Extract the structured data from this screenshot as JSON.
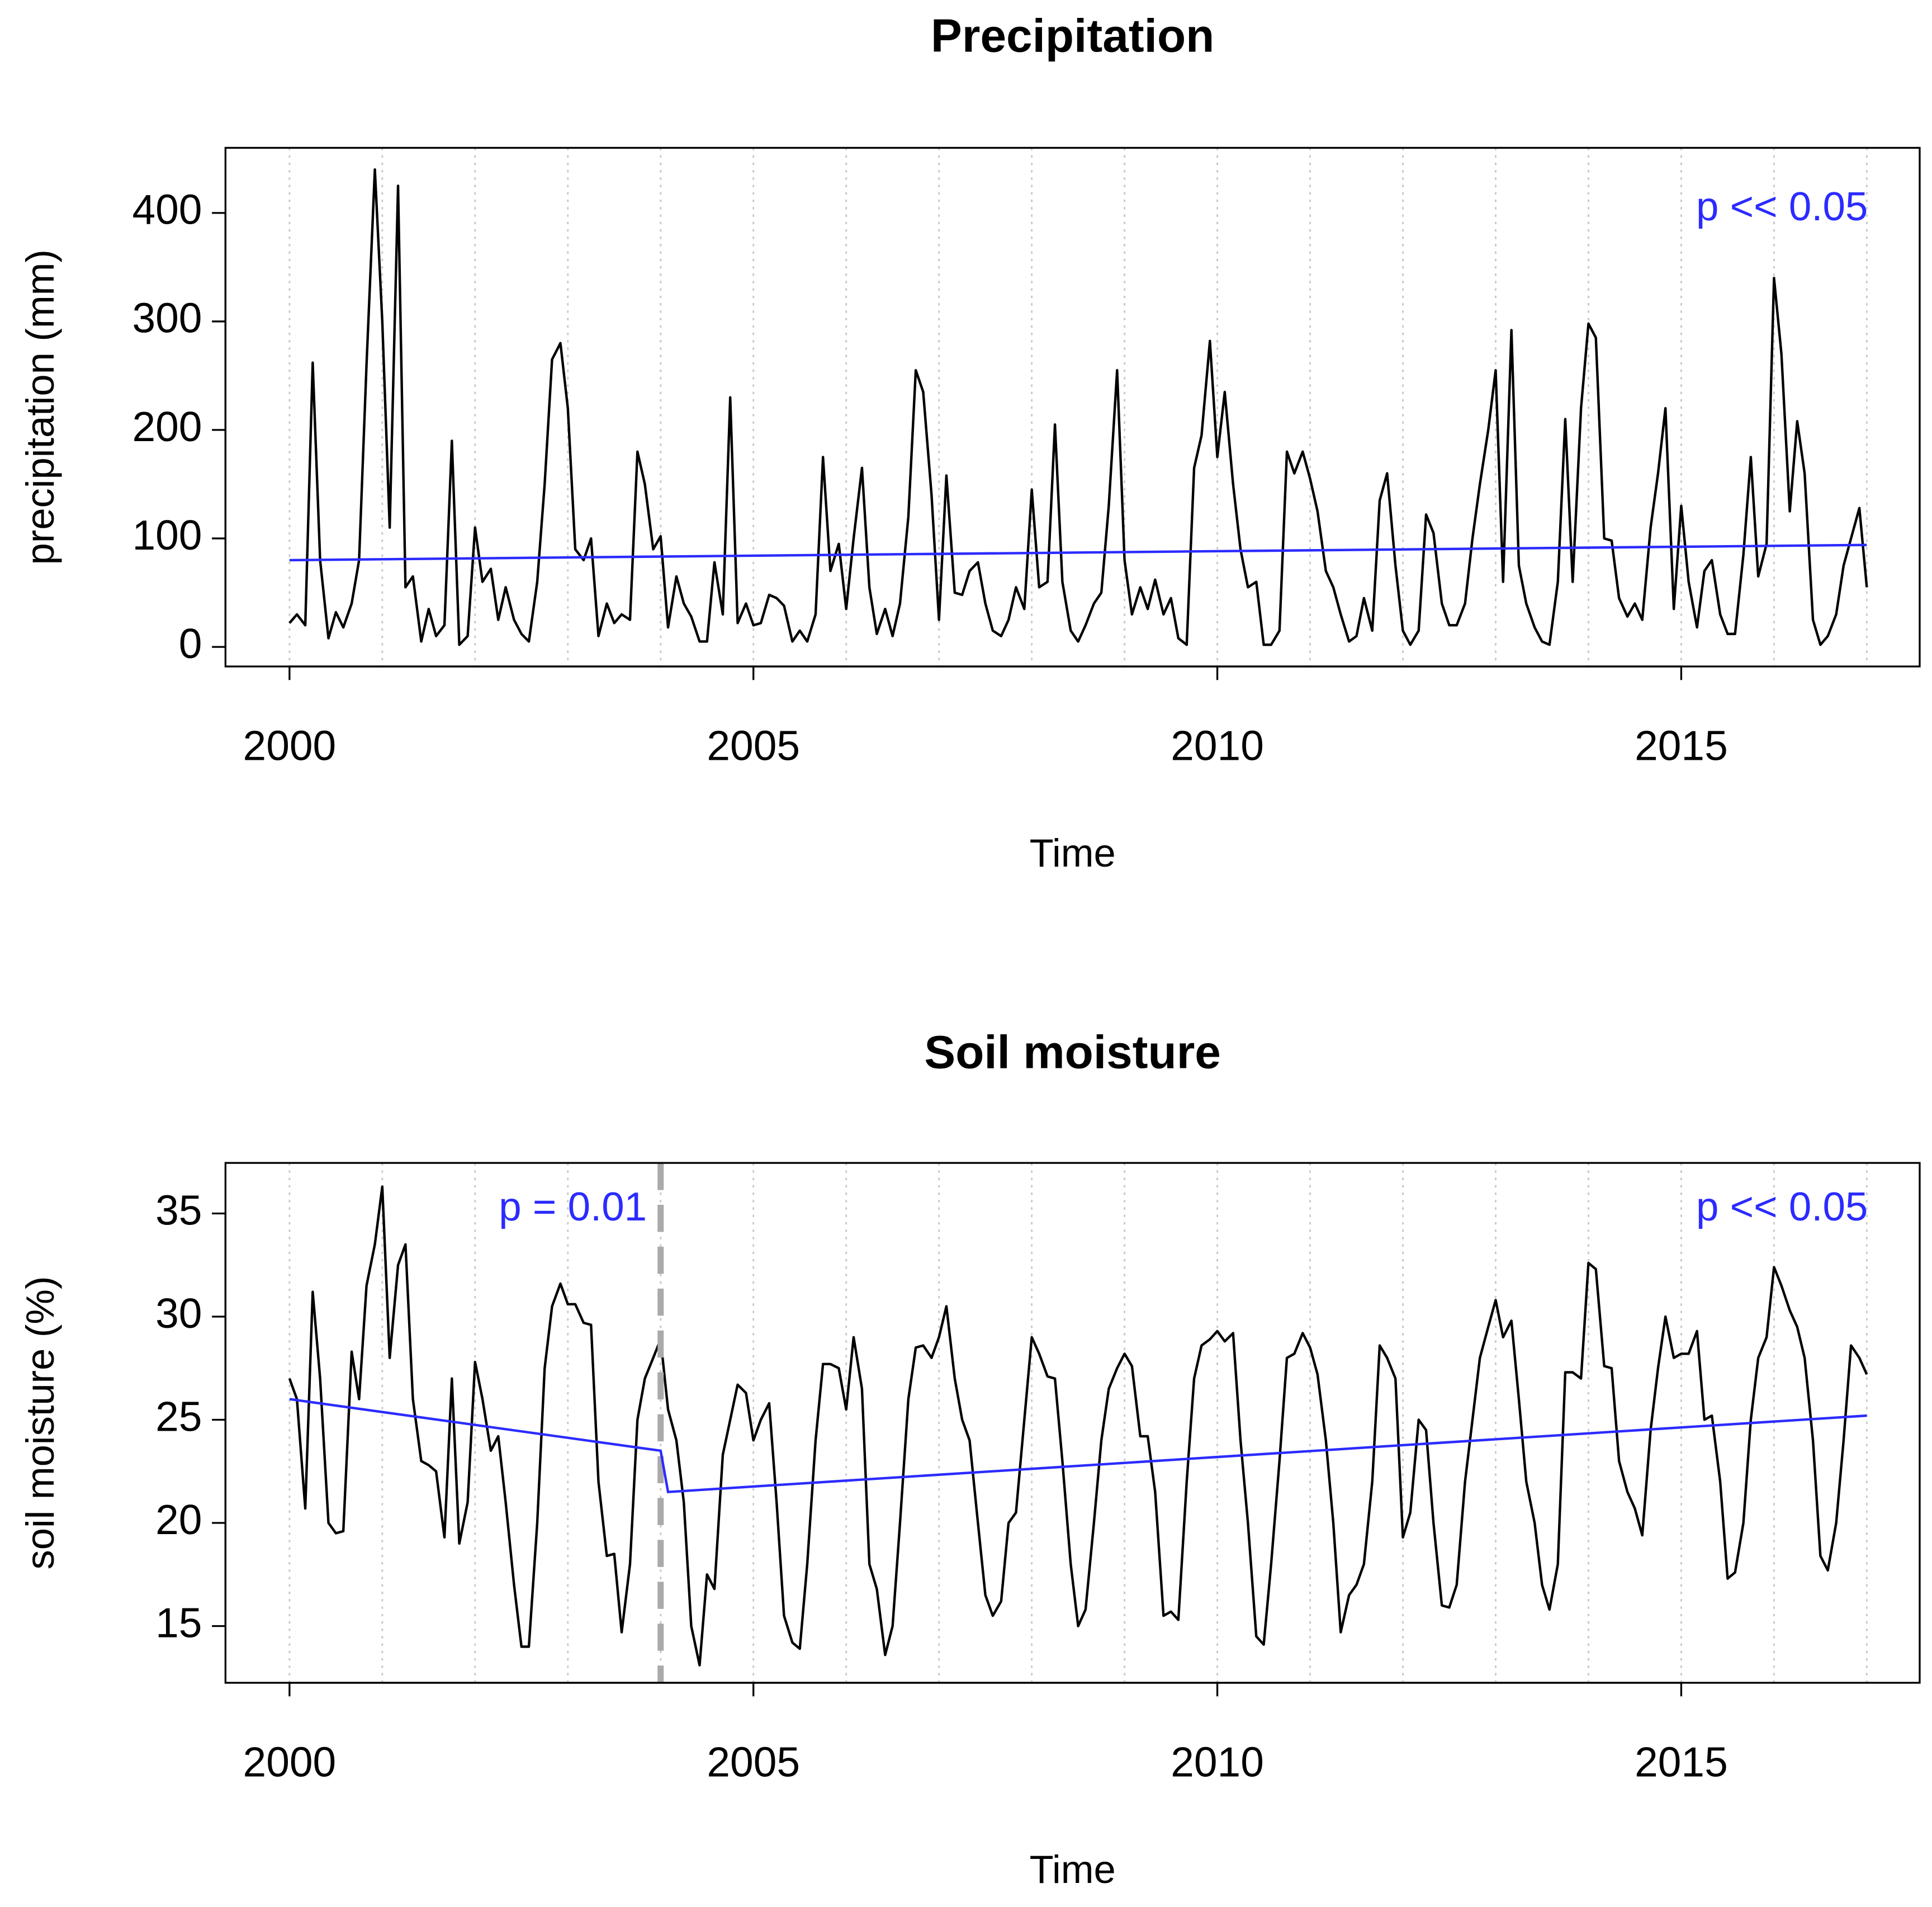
{
  "chart_data": [
    {
      "type": "line",
      "title": "Precipitation",
      "xlabel": "Time",
      "ylabel": "precipitation (mm)",
      "xlim": [
        1999.31,
        2017.57
      ],
      "ylim": [
        -18,
        460
      ],
      "xticks": [
        2000,
        2005,
        2010,
        2015
      ],
      "yticks": [
        0,
        100,
        200,
        300,
        400
      ],
      "xgrid": [
        2000,
        2001,
        2002,
        2003,
        2004,
        2005,
        2006,
        2007,
        2008,
        2009,
        2010,
        2011,
        2012,
        2013,
        2014,
        2015,
        2016,
        2017
      ],
      "grid": true,
      "x": [
        2000,
        2000.08,
        2000.17,
        2000.25,
        2000.33,
        2000.42,
        2000.5,
        2000.58,
        2000.67,
        2000.75,
        2000.83,
        2000.92,
        2001,
        2001.08,
        2001.17,
        2001.25,
        2001.33,
        2001.42,
        2001.5,
        2001.58,
        2001.67,
        2001.75,
        2001.83,
        2001.92,
        2002,
        2002.08,
        2002.17,
        2002.25,
        2002.33,
        2002.42,
        2002.5,
        2002.58,
        2002.67,
        2002.75,
        2002.83,
        2002.92,
        2003,
        2003.08,
        2003.17,
        2003.25,
        2003.33,
        2003.42,
        2003.5,
        2003.58,
        2003.67,
        2003.75,
        2003.83,
        2003.92,
        2004,
        2004.08,
        2004.17,
        2004.25,
        2004.33,
        2004.42,
        2004.5,
        2004.58,
        2004.67,
        2004.75,
        2004.83,
        2004.92,
        2005,
        2005.08,
        2005.17,
        2005.25,
        2005.33,
        2005.42,
        2005.5,
        2005.58,
        2005.67,
        2005.75,
        2005.83,
        2005.92,
        2006,
        2006.08,
        2006.17,
        2006.25,
        2006.33,
        2006.42,
        2006.5,
        2006.58,
        2006.67,
        2006.75,
        2006.83,
        2006.92,
        2007,
        2007.08,
        2007.17,
        2007.25,
        2007.33,
        2007.42,
        2007.5,
        2007.58,
        2007.67,
        2007.75,
        2007.83,
        2007.92,
        2008,
        2008.08,
        2008.17,
        2008.25,
        2008.33,
        2008.42,
        2008.5,
        2008.58,
        2008.67,
        2008.75,
        2008.83,
        2008.92,
        2009,
        2009.08,
        2009.17,
        2009.25,
        2009.33,
        2009.42,
        2009.5,
        2009.58,
        2009.67,
        2009.75,
        2009.83,
        2009.92,
        2010,
        2010.08,
        2010.17,
        2010.25,
        2010.33,
        2010.42,
        2010.5,
        2010.58,
        2010.67,
        2010.75,
        2010.83,
        2010.92,
        2011,
        2011.08,
        2011.17,
        2011.25,
        2011.33,
        2011.42,
        2011.5,
        2011.58,
        2011.67,
        2011.75,
        2011.83,
        2011.92,
        2012,
        2012.08,
        2012.17,
        2012.25,
        2012.33,
        2012.42,
        2012.5,
        2012.58,
        2012.67,
        2012.75,
        2012.83,
        2012.92,
        2013,
        2013.08,
        2013.17,
        2013.25,
        2013.33,
        2013.42,
        2013.5,
        2013.58,
        2013.67,
        2013.75,
        2013.83,
        2013.92,
        2014,
        2014.08,
        2014.17,
        2014.25,
        2014.33,
        2014.42,
        2014.5,
        2014.58,
        2014.67,
        2014.75,
        2014.83,
        2014.92,
        2015,
        2015.08,
        2015.17,
        2015.25,
        2015.33,
        2015.42,
        2015.5,
        2015.58,
        2015.67,
        2015.75,
        2015.83,
        2015.92,
        2016,
        2016.08,
        2016.17,
        2016.25,
        2016.33,
        2016.42,
        2016.5,
        2016.58,
        2016.67,
        2016.75,
        2016.83,
        2016.92,
        2017
      ],
      "series": [
        {
          "color": "#000000",
          "values": [
            22,
            30,
            20,
            262,
            80,
            8,
            32,
            18,
            40,
            80,
            260,
            440,
            300,
            110,
            425,
            55,
            65,
            5,
            35,
            10,
            20,
            190,
            2,
            10,
            110,
            60,
            72,
            25,
            55,
            25,
            12,
            5,
            60,
            150,
            265,
            280,
            220,
            90,
            80,
            100,
            10,
            40,
            22,
            30,
            25,
            180,
            150,
            90,
            102,
            18,
            65,
            40,
            28,
            5,
            5,
            78,
            30,
            230,
            22,
            40,
            20,
            22,
            48,
            45,
            38,
            5,
            15,
            5,
            30,
            175,
            70,
            95,
            35,
            100,
            165,
            55,
            12,
            35,
            10,
            40,
            120,
            255,
            235,
            140,
            25,
            158,
            50,
            48,
            70,
            78,
            40,
            15,
            10,
            25,
            55,
            35,
            145,
            55,
            60,
            205,
            60,
            15,
            5,
            20,
            40,
            50,
            130,
            255,
            80,
            30,
            55,
            35,
            62,
            30,
            45,
            8,
            2,
            165,
            195,
            282,
            175,
            235,
            150,
            90,
            55,
            60,
            2,
            2,
            15,
            180,
            160,
            180,
            155,
            125,
            70,
            55,
            30,
            5,
            10,
            45,
            15,
            135,
            160,
            75,
            15,
            2,
            15,
            122,
            105,
            40,
            20,
            20,
            40,
            100,
            150,
            200,
            255,
            60,
            292,
            75,
            40,
            18,
            5,
            2,
            60,
            210,
            60,
            220,
            298,
            285,
            100,
            98,
            45,
            28,
            40,
            25,
            110,
            160,
            220,
            35,
            130,
            60,
            18,
            70,
            80,
            30,
            12,
            12,
            85,
            175,
            65,
            95,
            340,
            270,
            125,
            208,
            160,
            25,
            2,
            10,
            30,
            75,
            100,
            128,
            55
          ]
        }
      ],
      "trend": {
        "color": "#2b2bff",
        "x": [
          2000,
          2017
        ],
        "values": [
          80,
          94
        ]
      },
      "annotations": [
        {
          "text": "p << 0.05",
          "color": "#2b2bff"
        }
      ]
    },
    {
      "type": "line",
      "title": "Soil moisture",
      "xlabel": "Time",
      "ylabel": "soil moisture (%)",
      "xlim": [
        1999.31,
        2017.57
      ],
      "ylim": [
        12.25,
        37.45
      ],
      "xticks": [
        2000,
        2005,
        2010,
        2015
      ],
      "yticks": [
        15,
        20,
        25,
        30,
        35
      ],
      "xgrid": [
        2000,
        2001,
        2002,
        2003,
        2004,
        2005,
        2006,
        2007,
        2008,
        2009,
        2010,
        2011,
        2012,
        2013,
        2014,
        2015,
        2016,
        2017
      ],
      "grid": true,
      "breakpoint": {
        "x": 2004,
        "color": "#aaaaaa"
      },
      "x": [
        2000,
        2000.08,
        2000.17,
        2000.25,
        2000.33,
        2000.42,
        2000.5,
        2000.58,
        2000.67,
        2000.75,
        2000.83,
        2000.92,
        2001,
        2001.08,
        2001.17,
        2001.25,
        2001.33,
        2001.42,
        2001.5,
        2001.58,
        2001.67,
        2001.75,
        2001.83,
        2001.92,
        2002,
        2002.08,
        2002.17,
        2002.25,
        2002.33,
        2002.42,
        2002.5,
        2002.58,
        2002.67,
        2002.75,
        2002.83,
        2002.92,
        2003,
        2003.08,
        2003.17,
        2003.25,
        2003.33,
        2003.42,
        2003.5,
        2003.58,
        2003.67,
        2003.75,
        2003.83,
        2003.92,
        2004,
        2004.08,
        2004.17,
        2004.25,
        2004.33,
        2004.42,
        2004.5,
        2004.58,
        2004.67,
        2004.75,
        2004.83,
        2004.92,
        2005,
        2005.08,
        2005.17,
        2005.25,
        2005.33,
        2005.42,
        2005.5,
        2005.58,
        2005.67,
        2005.75,
        2005.83,
        2005.92,
        2006,
        2006.08,
        2006.17,
        2006.25,
        2006.33,
        2006.42,
        2006.5,
        2006.58,
        2006.67,
        2006.75,
        2006.83,
        2006.92,
        2007,
        2007.08,
        2007.17,
        2007.25,
        2007.33,
        2007.42,
        2007.5,
        2007.58,
        2007.67,
        2007.75,
        2007.83,
        2007.92,
        2008,
        2008.08,
        2008.17,
        2008.25,
        2008.33,
        2008.42,
        2008.5,
        2008.58,
        2008.67,
        2008.75,
        2008.83,
        2008.92,
        2009,
        2009.08,
        2009.17,
        2009.25,
        2009.33,
        2009.42,
        2009.5,
        2009.58,
        2009.67,
        2009.75,
        2009.83,
        2009.92,
        2010,
        2010.08,
        2010.17,
        2010.25,
        2010.33,
        2010.42,
        2010.5,
        2010.58,
        2010.67,
        2010.75,
        2010.83,
        2010.92,
        2011,
        2011.08,
        2011.17,
        2011.25,
        2011.33,
        2011.42,
        2011.5,
        2011.58,
        2011.67,
        2011.75,
        2011.83,
        2011.92,
        2012,
        2012.08,
        2012.17,
        2012.25,
        2012.33,
        2012.42,
        2012.5,
        2012.58,
        2012.67,
        2012.75,
        2012.83,
        2012.92,
        2013,
        2013.08,
        2013.17,
        2013.25,
        2013.33,
        2013.42,
        2013.5,
        2013.58,
        2013.67,
        2013.75,
        2013.83,
        2013.92,
        2014,
        2014.08,
        2014.17,
        2014.25,
        2014.33,
        2014.42,
        2014.5,
        2014.58,
        2014.67,
        2014.75,
        2014.83,
        2014.92,
        2015,
        2015.08,
        2015.17,
        2015.25,
        2015.33,
        2015.42,
        2015.5,
        2015.58,
        2015.67,
        2015.75,
        2015.83,
        2015.92,
        2016,
        2016.08,
        2016.17,
        2016.25,
        2016.33,
        2016.42,
        2016.5,
        2016.58,
        2016.67,
        2016.75,
        2016.83,
        2016.92,
        2017
      ],
      "series": [
        {
          "color": "#000000",
          "values": [
            27,
            26,
            20.7,
            31.2,
            27,
            20,
            19.5,
            19.6,
            28.3,
            26,
            31.5,
            33.5,
            36.3,
            28,
            32.5,
            33.5,
            26,
            23,
            22.8,
            22.5,
            19.3,
            27,
            19,
            21,
            27.8,
            26,
            23.5,
            24.2,
            21,
            17,
            14,
            14,
            20,
            27.5,
            30.5,
            31.6,
            30.6,
            30.6,
            29.7,
            29.6,
            22,
            18.4,
            18.5,
            14.7,
            18,
            25,
            27,
            28,
            28.9,
            25.5,
            24,
            21,
            15,
            13.1,
            17.5,
            16.8,
            23.3,
            25,
            26.7,
            26.3,
            24,
            25,
            25.8,
            21,
            15.5,
            14.2,
            13.9,
            18,
            24,
            27.7,
            27.7,
            27.5,
            25.5,
            29,
            26.5,
            18,
            16.8,
            13.6,
            15,
            20,
            26,
            28.5,
            28.6,
            28,
            29,
            30.5,
            27,
            25,
            24,
            20,
            16.5,
            15.5,
            16.2,
            20,
            20.5,
            25,
            29,
            28.2,
            27.1,
            27,
            23,
            18,
            15,
            15.8,
            20,
            24,
            26.5,
            27.5,
            28.2,
            27.6,
            24.2,
            24.2,
            21.5,
            15.5,
            15.7,
            15.3,
            22,
            27,
            28.6,
            28.9,
            29.3,
            28.8,
            29.2,
            24,
            20,
            14.5,
            14.1,
            18,
            23,
            28,
            28.2,
            29.2,
            28.5,
            27.2,
            24,
            20,
            14.7,
            16.5,
            17,
            18,
            22,
            28.6,
            28,
            27,
            19.3,
            20.5,
            25,
            24.5,
            20,
            16,
            15.9,
            17,
            22,
            25,
            28,
            29.5,
            30.8,
            29,
            29.8,
            26,
            22,
            20,
            17,
            15.8,
            18,
            27.3,
            27.3,
            27,
            32.6,
            32.3,
            27.6,
            27.5,
            23,
            21.5,
            20.7,
            19.4,
            24.5,
            27.5,
            30,
            28,
            28.2,
            28.2,
            29.3,
            25,
            25.2,
            22,
            17.3,
            17.6,
            20,
            25,
            28,
            29,
            32.4,
            31.5,
            30.3,
            29.5,
            28,
            24,
            18.4,
            17.7,
            20,
            24,
            28.6,
            28,
            27.2
          ]
        }
      ],
      "trend": {
        "color": "#2b2bff",
        "x": [
          2000,
          2004,
          2004.08,
          2017
        ],
        "values": [
          26,
          23.5,
          21.5,
          25.2
        ]
      },
      "annotations": [
        {
          "text": "p = 0.01",
          "color": "#2b2bff"
        },
        {
          "text": "p << 0.05",
          "color": "#2b2bff"
        }
      ]
    }
  ]
}
